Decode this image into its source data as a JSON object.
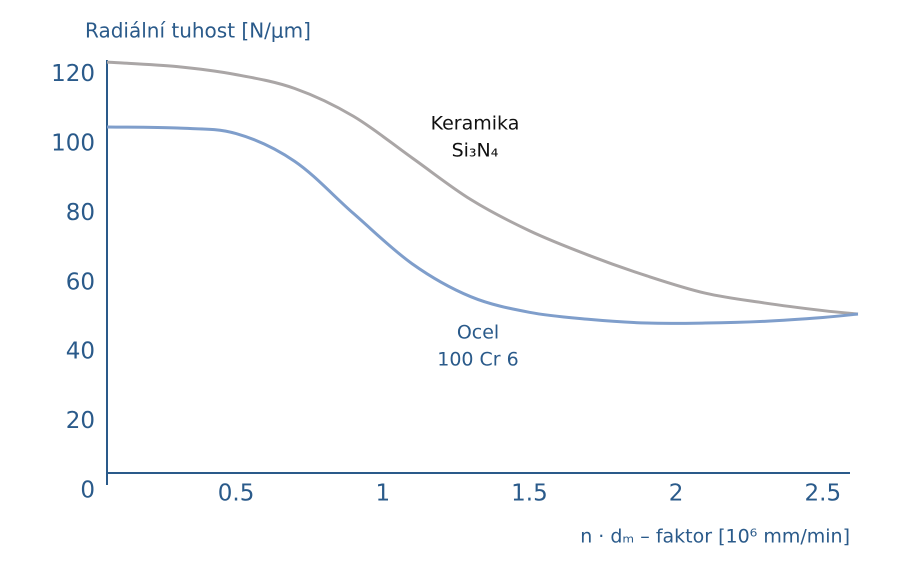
{
  "chart_data": {
    "type": "line",
    "y_label": "Radiální tuhost [N/μm]",
    "x_label": "n · dₘ – faktor [10⁶ mm/min]",
    "x": [
      0.06,
      0.3,
      0.5,
      0.7,
      0.9,
      1.1,
      1.3,
      1.5,
      1.7,
      1.9,
      2.1,
      2.3,
      2.5,
      2.62
    ],
    "series": [
      {
        "color": "#aaa6a6",
        "values": [
          123.6,
          122.3,
          120,
          116,
          108,
          96,
          84,
          75,
          68,
          62,
          57,
          54.2,
          52,
          51
        ]
      },
      {
        "color": "#7f9ecb",
        "values": [
          104.9,
          104.6,
          103,
          95,
          80,
          65.5,
          56,
          51.5,
          49.5,
          48.4,
          48.4,
          48.9,
          50,
          51
        ]
      }
    ],
    "annotations": [
      {
        "lines": [
          "Keramika",
          "Si₃N₄"
        ],
        "color": "#111111"
      },
      {
        "lines": [
          "Ocel",
          "100 Cr 6"
        ],
        "color": "#2a5a8a"
      }
    ],
    "xlim": [
      0.06,
      2.62
    ],
    "xticks": [
      0.5,
      1,
      1.5,
      2,
      2.5
    ],
    "ylim": [
      0,
      125
    ],
    "yticks": [
      0,
      20,
      40,
      60,
      80,
      100,
      120
    ],
    "grid": false
  }
}
